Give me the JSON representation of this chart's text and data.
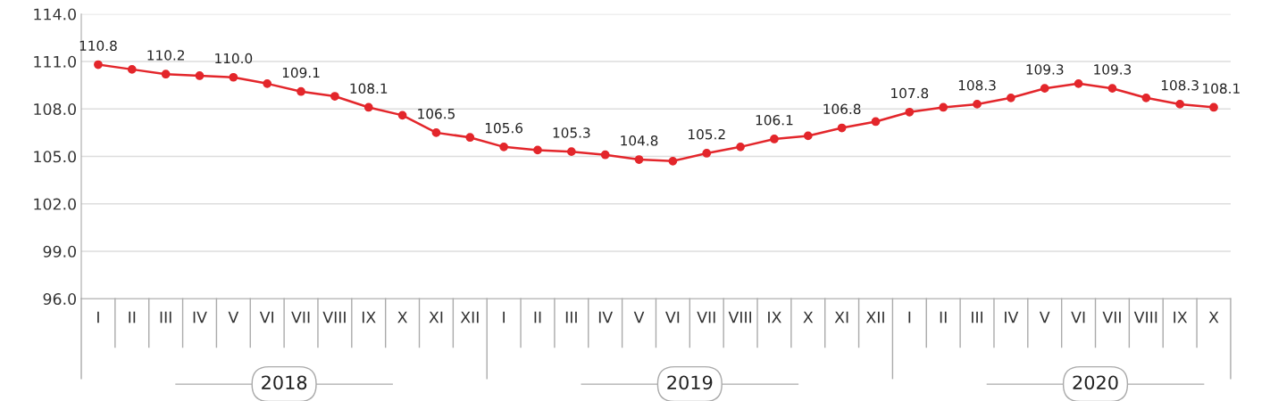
{
  "chart_data": {
    "type": "line",
    "categories": [
      "I",
      "II",
      "III",
      "IV",
      "V",
      "VI",
      "VII",
      "VIII",
      "IX",
      "X",
      "XI",
      "XII",
      "I",
      "II",
      "III",
      "IV",
      "V",
      "VI",
      "VII",
      "VIII",
      "IX",
      "X",
      "XI",
      "XII",
      "I",
      "II",
      "III",
      "IV",
      "V",
      "VI",
      "VII",
      "VIII",
      "IX",
      "X"
    ],
    "series": [
      {
        "color": "#e3262b",
        "values": [
          110.8,
          110.5,
          110.2,
          110.1,
          110.0,
          109.6,
          109.1,
          108.8,
          108.1,
          107.6,
          106.5,
          106.2,
          105.6,
          105.4,
          105.3,
          105.1,
          104.8,
          104.7,
          105.2,
          105.6,
          106.1,
          106.3,
          106.8,
          107.2,
          107.8,
          108.1,
          108.3,
          108.7,
          109.3,
          109.6,
          109.3,
          108.7,
          108.3,
          108.1
        ],
        "value_labels": [
          "110.8",
          null,
          "110.2",
          null,
          "110.0",
          null,
          "109.1",
          null,
          "108.1",
          null,
          "106.5",
          null,
          "105.6",
          null,
          "105.3",
          null,
          "104.8",
          null,
          "105.2",
          null,
          "106.1",
          null,
          "106.8",
          null,
          "107.8",
          null,
          "108.3",
          null,
          "109.3",
          null,
          "109.3",
          null,
          "108.3",
          "108.1"
        ]
      }
    ],
    "ylim": [
      96,
      114
    ],
    "yticks": [
      {
        "value": 96,
        "label": "96.0"
      },
      {
        "value": 99,
        "label": "99.0"
      },
      {
        "value": 102,
        "label": "102.0"
      },
      {
        "value": 105,
        "label": "105.0"
      },
      {
        "value": 108,
        "label": "108.0"
      },
      {
        "value": 111,
        "label": "111.0"
      },
      {
        "value": 114,
        "label": "114.0"
      }
    ],
    "grid": "y",
    "marker": "circle",
    "line_style": "solid",
    "annotations": [
      "2018",
      "2019",
      "2020"
    ]
  }
}
